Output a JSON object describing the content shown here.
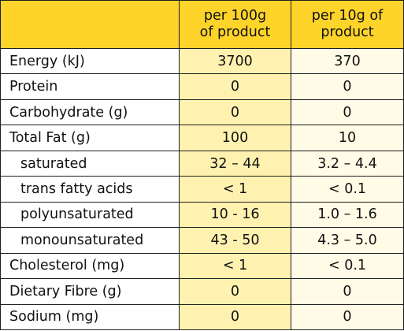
{
  "header": {
    "col_100g_line1": "per 100g",
    "col_100g_line2": "of product",
    "col_10g_line1": "per 10g of",
    "col_10g_line2": "product"
  },
  "rows": [
    {
      "label": "Energy (kJ)",
      "per100g": "3700",
      "per10g": "370"
    },
    {
      "label": "Protein",
      "per100g": "0",
      "per10g": "0"
    },
    {
      "label": "Carbohydrate (g)",
      "per100g": "0",
      "per10g": "0"
    },
    {
      "label": "Total Fat (g)",
      "per100g": "100",
      "per10g": "10"
    },
    {
      "label": "saturated",
      "per100g": "32 – 44",
      "per10g": "3.2 – 4.4"
    },
    {
      "label": "trans fatty acids",
      "per100g": "< 1",
      "per10g": "< 0.1"
    },
    {
      "label": "polyunsaturated",
      "per100g": "10 - 16",
      "per10g": "1.0 – 1.6"
    },
    {
      "label": "monounsaturated",
      "per100g": "43 - 50",
      "per10g": "4.3 – 5.0"
    },
    {
      "label": "Cholesterol (mg)",
      "per100g": "< 1",
      "per10g": "< 0.1"
    },
    {
      "label": "Dietary Fibre (g)",
      "per100g": "0",
      "per10g": "0"
    },
    {
      "label": "Sodium (mg)",
      "per100g": "0",
      "per10g": "0"
    }
  ],
  "colors": {
    "header_bg": "#ffd42a",
    "col_100g_bg": "#fff2b0",
    "col_10g_bg": "#fffbe6",
    "border": "#1e1e1e"
  }
}
